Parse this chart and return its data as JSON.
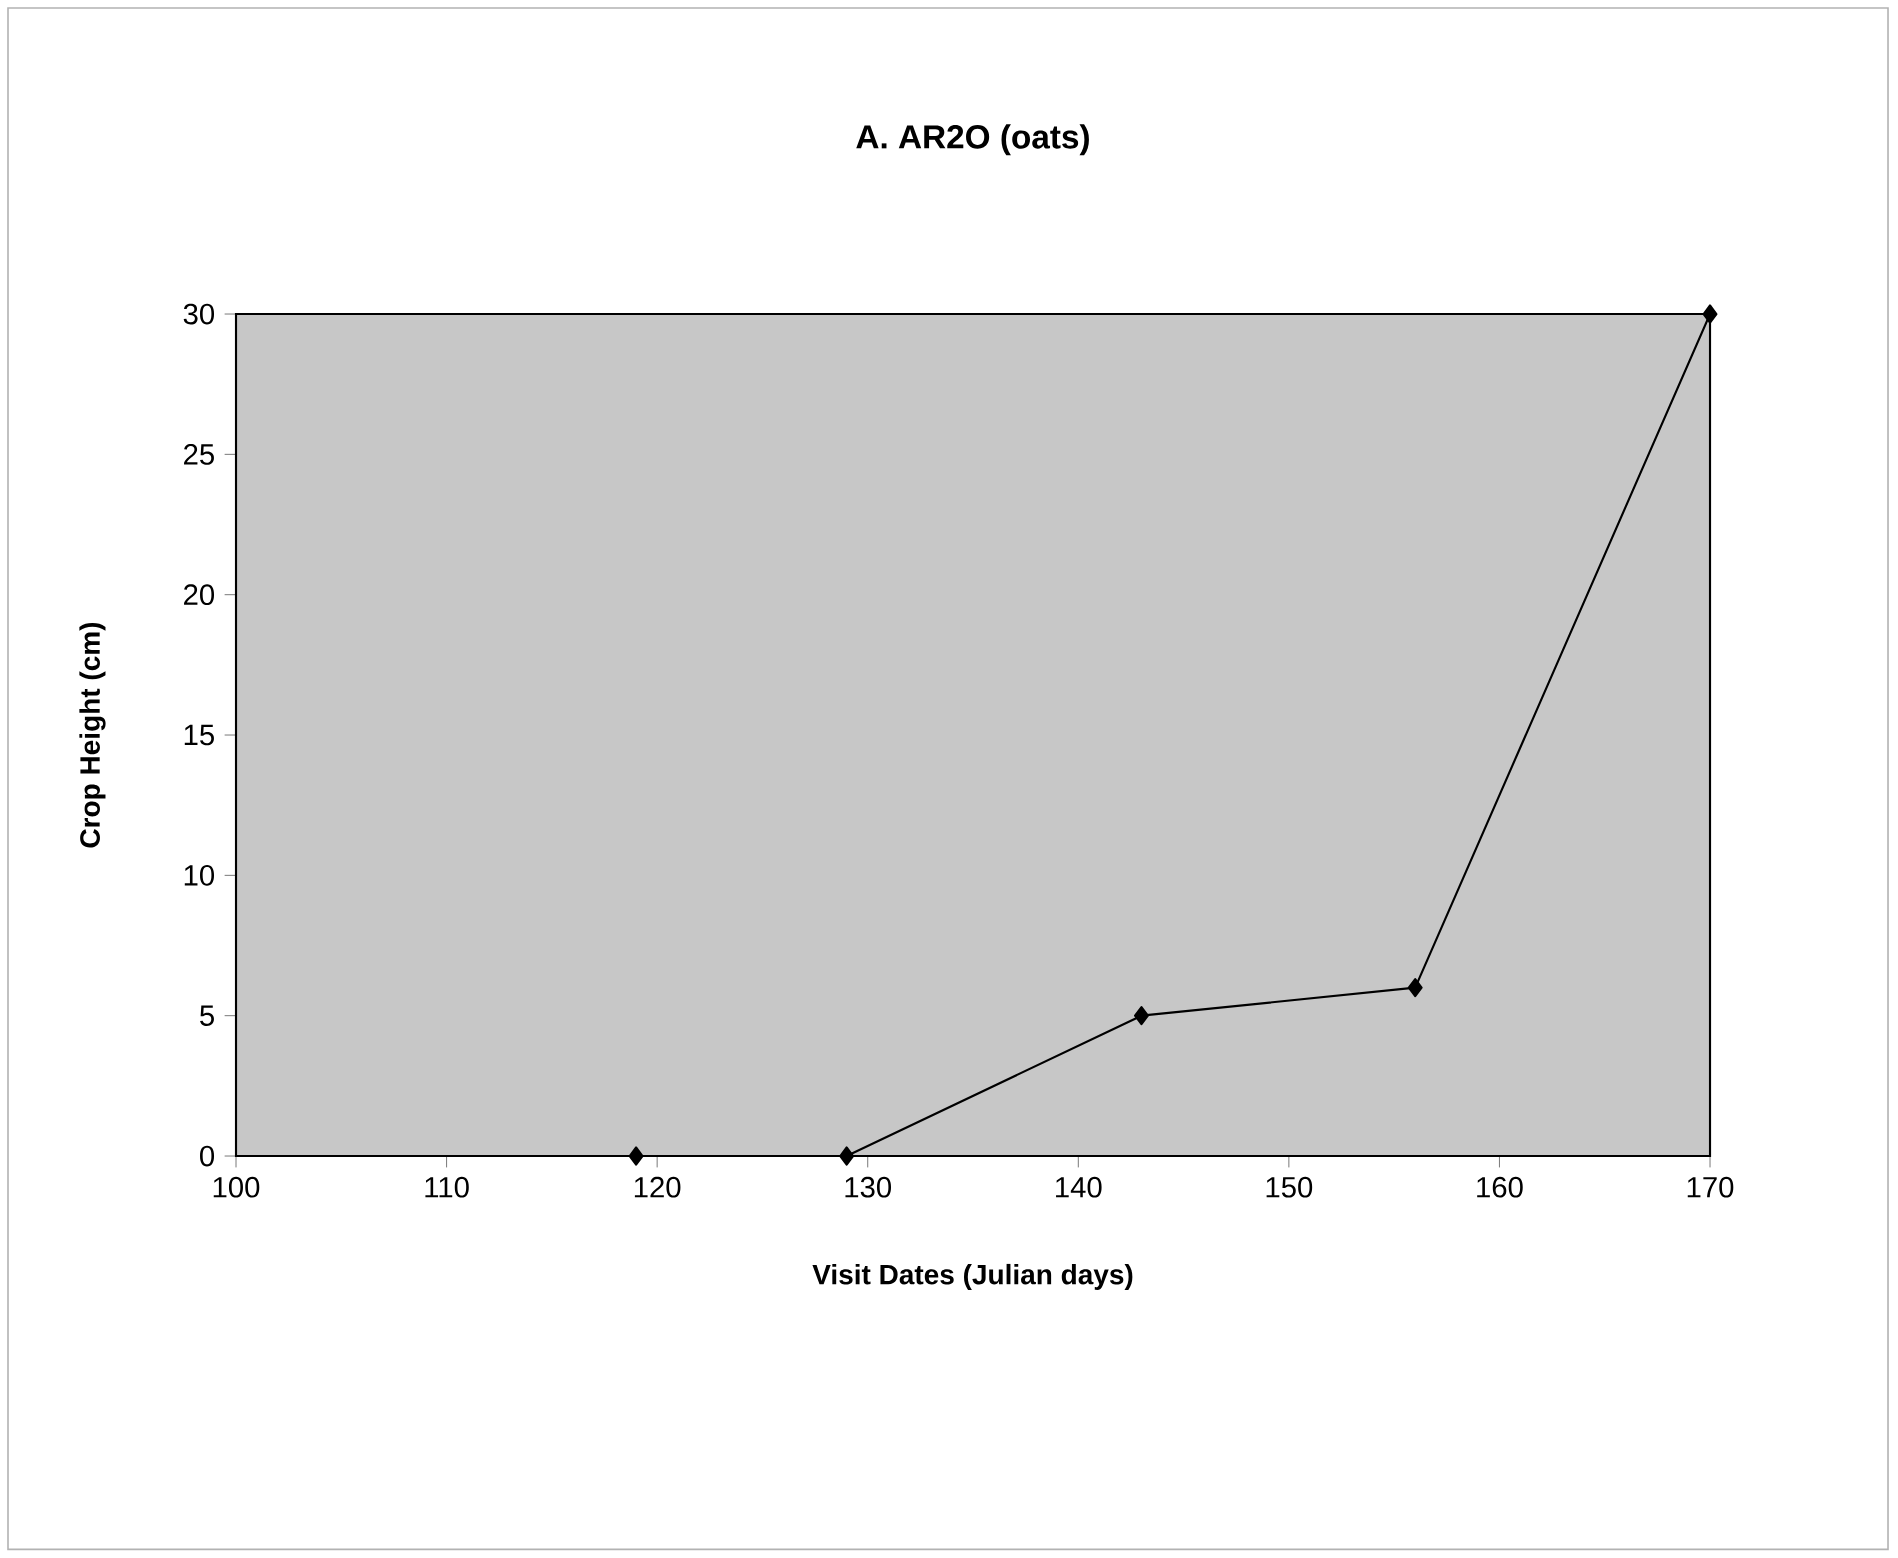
{
  "chart_data": {
    "type": "line",
    "title": "A. AR2O (oats)",
    "xlabel": "Visit Dates (Julian days)",
    "ylabel": "Crop Height (cm)",
    "x": [
      119,
      129,
      143,
      156,
      170
    ],
    "series": [
      {
        "color": "#000000",
        "values": [
          0,
          0,
          5,
          6,
          30
        ]
      }
    ],
    "xlim": [
      100,
      170
    ],
    "xticks": [
      100,
      110,
      120,
      130,
      140,
      150,
      160,
      170
    ],
    "ylim": [
      0,
      30
    ],
    "yticks": [
      0,
      5,
      10,
      15,
      20,
      25,
      30
    ],
    "marker": "diamond",
    "line_style": "solid",
    "grid": false
  }
}
